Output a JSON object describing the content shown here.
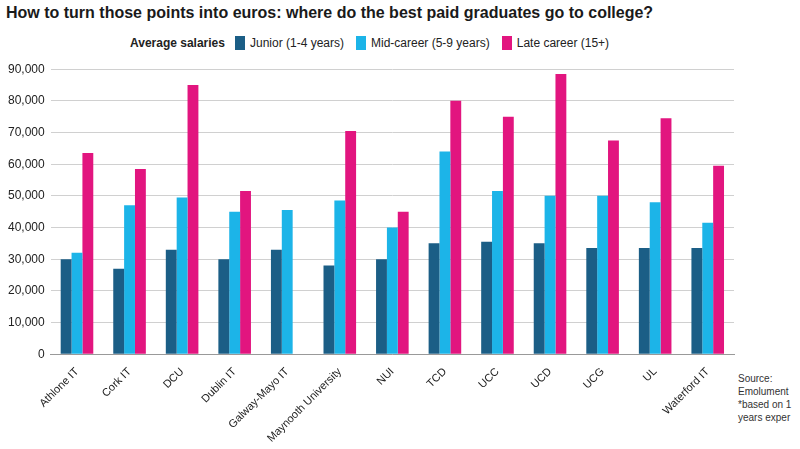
{
  "chart_data": {
    "type": "bar",
    "title": "How to turn those points into euros: where do the best paid graduates go to college?",
    "legend_title": "Average salaries",
    "legend": "top",
    "grid": true,
    "categories": [
      "Athlone IT",
      "Cork IT",
      "DCU",
      "Dublin IT",
      "Galway-Mayo IT",
      "Maynooth University",
      "NUI",
      "TCD",
      "UCC",
      "UCD",
      "UCG",
      "UL",
      "Waterford IT"
    ],
    "series": [
      {
        "name": "Junior (1-4 years)",
        "color": "#1b5e86",
        "values": [
          30000,
          27000,
          33000,
          30000,
          33000,
          28000,
          30000,
          35000,
          35500,
          35000,
          33500,
          33500,
          33500
        ]
      },
      {
        "name": "Mid-career (5-9 years)",
        "color": "#1cb4e8",
        "values": [
          32000,
          47000,
          49500,
          45000,
          45500,
          48500,
          40000,
          64000,
          51500,
          50000,
          50000,
          48000,
          41500
        ]
      },
      {
        "name": "Late career (15+)",
        "color": "#e2157f",
        "values": [
          63500,
          58500,
          85000,
          51500,
          null,
          70500,
          45000,
          80000,
          75000,
          88500,
          67500,
          74500,
          59500
        ]
      }
    ],
    "ylim": [
      0,
      90000
    ],
    "yticks": [
      0,
      {
        "value": 10000,
        "label": "10,000"
      },
      {
        "value": 20000,
        "label": "20,000"
      },
      {
        "value": 30000,
        "label": "30,000"
      },
      {
        "value": 40000,
        "label": "40,000"
      },
      {
        "value": 50000,
        "label": "50,000"
      },
      {
        "value": 60000,
        "label": "60,000"
      },
      {
        "value": 70000,
        "label": "70,000"
      },
      {
        "value": 80000,
        "label": "80,000"
      },
      {
        "value": 90000,
        "label": "90,000"
      }
    ],
    "annotations": [
      "Source:",
      "Emolument",
      "*based on 1",
      "years exper"
    ]
  }
}
